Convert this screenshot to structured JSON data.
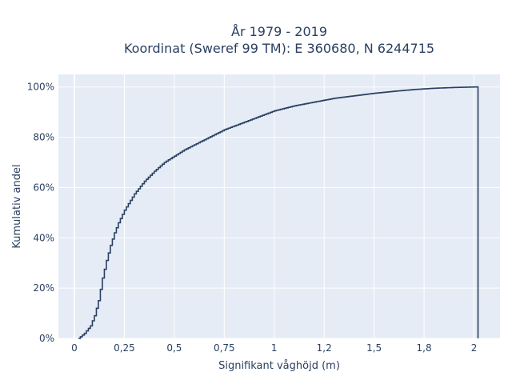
{
  "chart_data": {
    "type": "line",
    "subtype": "empirical-cdf-step",
    "title_lines": [
      "År 1979 - 2019",
      "Koordinat (Sweref 99 TM): E 360680, N 6244715"
    ],
    "xlabel": "Signifikant våghöjd (m)",
    "ylabel": "Kumulativ andel",
    "xlim": [
      -0.08,
      2.13
    ],
    "ylim": [
      0,
      1.05
    ],
    "x_ticks": [
      0,
      0.25,
      0.5,
      0.75,
      1,
      1.25,
      1.5,
      1.75,
      2
    ],
    "x_tick_labels": [
      "0",
      "0,25",
      "0,5",
      "0,75",
      "1",
      "1,2",
      "1,5",
      "1,8",
      "2"
    ],
    "y_ticks": [
      0,
      0.2,
      0.4,
      0.6,
      0.8,
      1.0
    ],
    "y_tick_labels": [
      "0%",
      "20%",
      "40%",
      "60%",
      "80%",
      "100%"
    ],
    "grid": true,
    "background": "#e5ecf6",
    "line_color": "#2a3f5f",
    "series": [
      {
        "x": [
          0.02,
          0.05,
          0.08,
          0.1,
          0.12,
          0.14,
          0.16,
          0.18,
          0.2,
          0.22,
          0.25,
          0.3,
          0.35,
          0.4,
          0.45,
          0.5,
          0.55,
          0.6,
          0.65,
          0.7,
          0.75,
          0.8,
          0.85,
          0.9,
          0.95,
          1.0,
          1.1,
          1.2,
          1.3,
          1.4,
          1.5,
          1.6,
          1.7,
          1.8,
          1.9,
          2.0,
          2.02
        ],
        "y": [
          0.0,
          0.02,
          0.05,
          0.09,
          0.15,
          0.24,
          0.31,
          0.37,
          0.42,
          0.46,
          0.51,
          0.575,
          0.625,
          0.665,
          0.7,
          0.725,
          0.75,
          0.77,
          0.79,
          0.81,
          0.83,
          0.845,
          0.86,
          0.875,
          0.89,
          0.905,
          0.925,
          0.94,
          0.955,
          0.965,
          0.975,
          0.983,
          0.99,
          0.995,
          0.998,
          1.0,
          1.0
        ]
      }
    ]
  }
}
